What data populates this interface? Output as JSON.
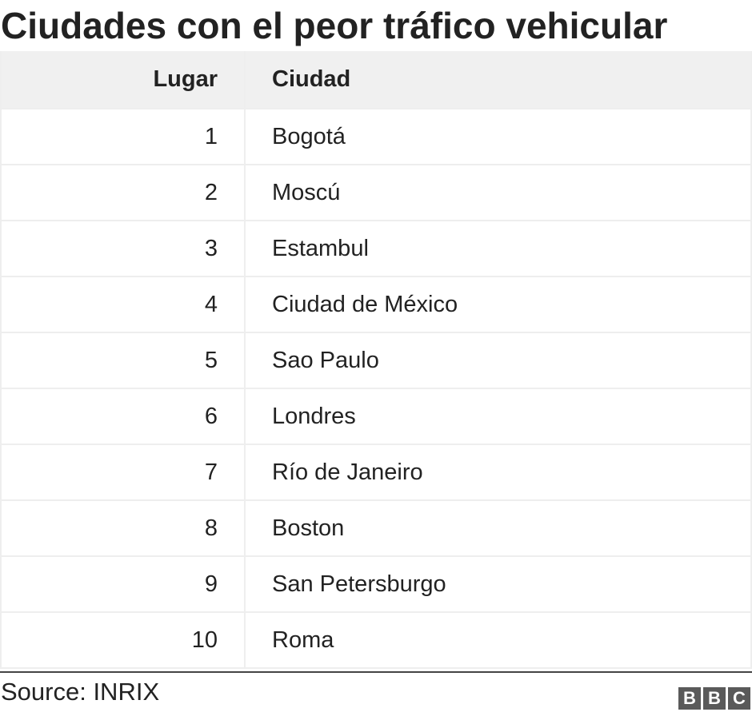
{
  "title": "Ciudades con el peor tráfico vehicular",
  "chart_data": {
    "type": "table",
    "title": "Ciudades con el peor tráfico vehicular",
    "columns": [
      "Lugar",
      "Ciudad"
    ],
    "rows": [
      [
        "1",
        "Bogotá"
      ],
      [
        "2",
        "Moscú"
      ],
      [
        "3",
        "Estambul"
      ],
      [
        "4",
        "Ciudad de México"
      ],
      [
        "5",
        "Sao Paulo"
      ],
      [
        "6",
        "Londres"
      ],
      [
        "7",
        "Río de Janeiro"
      ],
      [
        "8",
        "Boston"
      ],
      [
        "9",
        "San Petersburgo"
      ],
      [
        "10",
        "Roma"
      ]
    ]
  },
  "footer": {
    "source": "Source: INRIX",
    "logo_letters": [
      "B",
      "B",
      "C"
    ]
  }
}
